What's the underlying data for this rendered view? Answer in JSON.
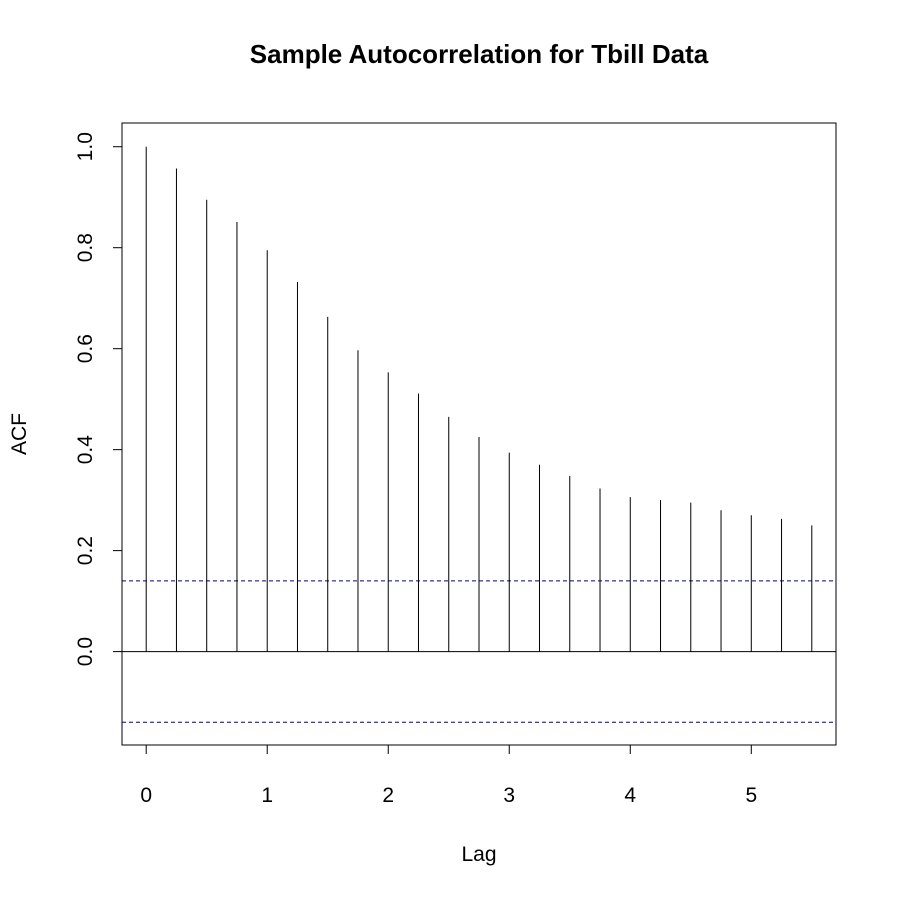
{
  "chart_data": {
    "type": "bar",
    "title": "Sample Autocorrelation for Tbill Data",
    "xlabel": "Lag",
    "ylabel": "ACF",
    "xlim": [
      -0.2,
      5.7
    ],
    "ylim": [
      -0.185,
      1.047
    ],
    "x_ticks": [
      "0",
      "1",
      "2",
      "3",
      "4",
      "5"
    ],
    "y_ticks": [
      "0.0",
      "0.2",
      "0.4",
      "0.6",
      "0.8",
      "1.0"
    ],
    "grid": false,
    "legend": "none",
    "lags": [
      0,
      0.25,
      0.5,
      0.75,
      1.0,
      1.25,
      1.5,
      1.75,
      2.0,
      2.25,
      2.5,
      2.75,
      3.0,
      3.25,
      3.5,
      3.75,
      4.0,
      4.25,
      4.5,
      4.75,
      5.0,
      5.25,
      5.5
    ],
    "acf": [
      1.0,
      0.957,
      0.895,
      0.851,
      0.795,
      0.732,
      0.663,
      0.597,
      0.553,
      0.511,
      0.465,
      0.425,
      0.394,
      0.37,
      0.348,
      0.323,
      0.306,
      0.3,
      0.295,
      0.28,
      0.27,
      0.263,
      0.25
    ],
    "confidence_bound": 0.14,
    "colors": {
      "bars": "#000000",
      "confidence": "#00008b",
      "zero_line": "#000000"
    }
  }
}
